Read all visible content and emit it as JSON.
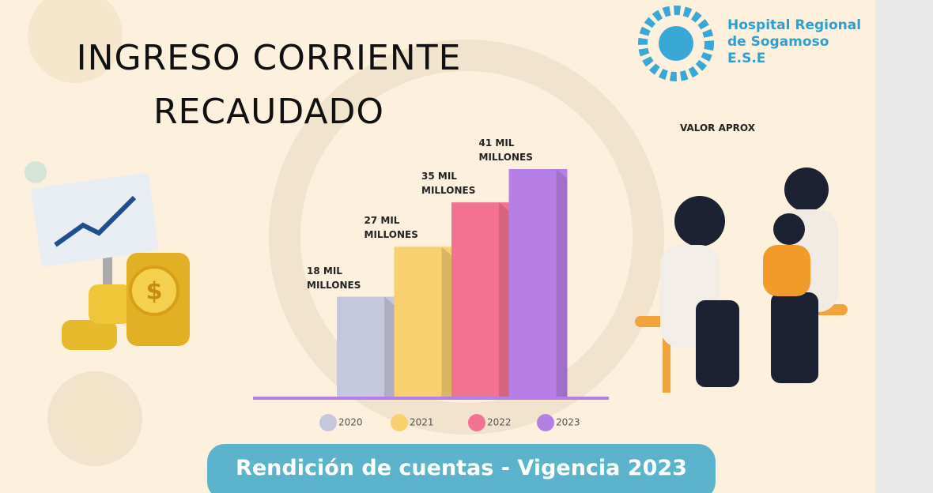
{
  "header": {
    "title": "INGRESO   CORRIENTE RECAUDADO",
    "org": "Hospital Regional de Sogamoso E.S.E"
  },
  "note": "VALOR APROX",
  "footer": "Rendición de cuentas - Vigencia 2023",
  "chart_data": {
    "type": "bar",
    "categories": [
      "2020",
      "2021",
      "2022",
      "2023"
    ],
    "values": [
      18,
      27,
      35,
      41
    ],
    "value_labels": [
      "18 MIL MILLONES",
      "27 MIL MILLONES",
      "35 MIL MILLONES",
      "41 MIL MILLONES"
    ],
    "colors": [
      "#c5c7dc",
      "#f8d06e",
      "#f17391",
      "#b57fe6"
    ],
    "legend": "bottom"
  }
}
